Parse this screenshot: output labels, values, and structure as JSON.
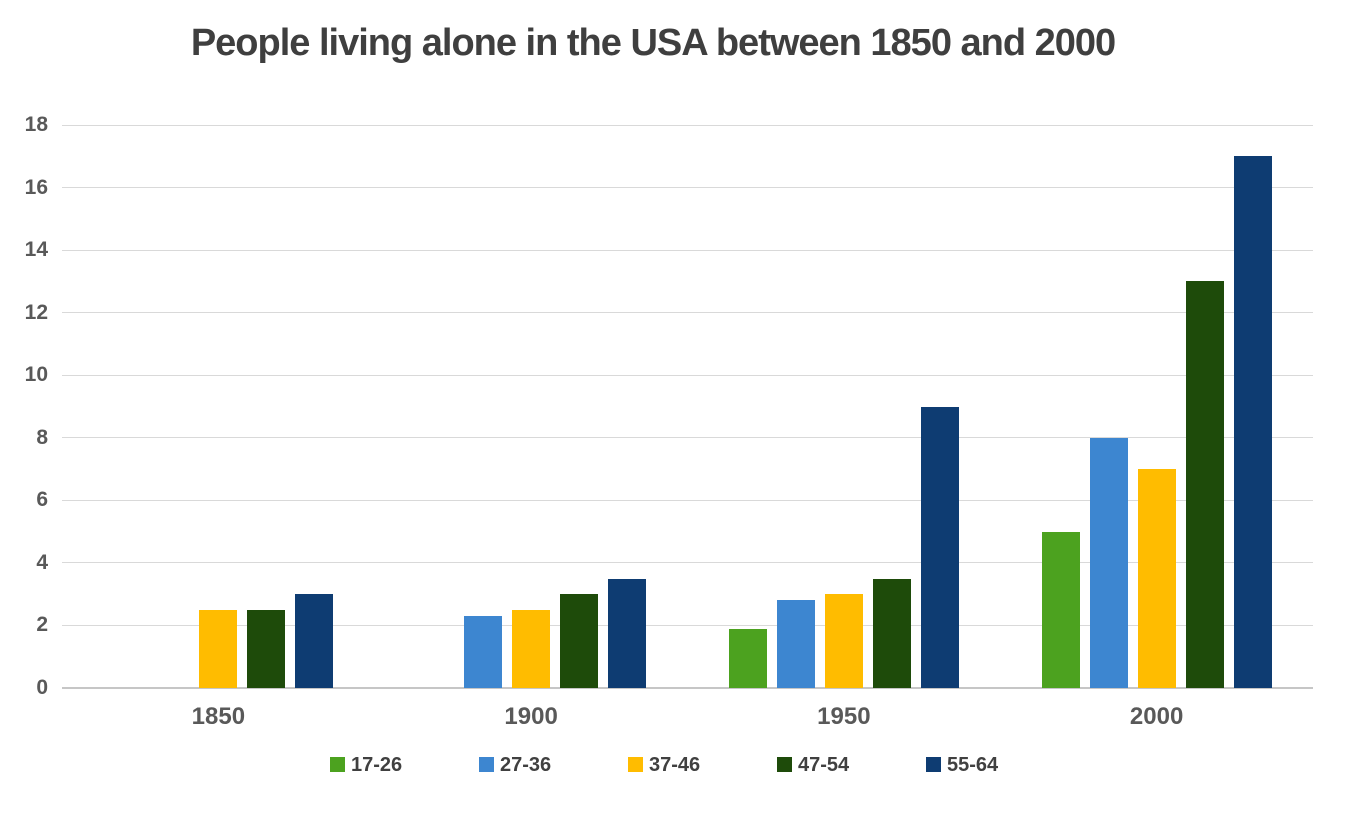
{
  "chart_data": {
    "type": "bar",
    "title": "People living alone in the USA between 1850 and 2000",
    "categories": [
      "1850",
      "1900",
      "1950",
      "2000"
    ],
    "series": [
      {
        "name": "17-26",
        "color": "#4CA21F",
        "values": [
          0,
          0,
          1.9,
          5
        ]
      },
      {
        "name": "27-36",
        "color": "#3D86D0",
        "values": [
          0,
          2.3,
          2.8,
          8
        ]
      },
      {
        "name": "37-46",
        "color": "#FFBC00",
        "values": [
          2.5,
          2.5,
          3,
          7
        ]
      },
      {
        "name": "47-54",
        "color": "#1E4B0A",
        "values": [
          2.5,
          3,
          3.5,
          13
        ]
      },
      {
        "name": "55-64",
        "color": "#0E3C72",
        "values": [
          3,
          3.5,
          9,
          17
        ]
      }
    ],
    "ylim": [
      0,
      18
    ],
    "yticks": [
      0,
      2,
      4,
      6,
      8,
      10,
      12,
      14,
      16,
      18
    ],
    "grid": true,
    "legend_position": "bottom",
    "colors": {
      "background": "#FFFFFF",
      "gridline": "#D9D9D9",
      "axis_line": "#C6C6C6",
      "axis_label": "#595959",
      "title": "#3F3F3F",
      "legend_label": "#404040"
    }
  }
}
